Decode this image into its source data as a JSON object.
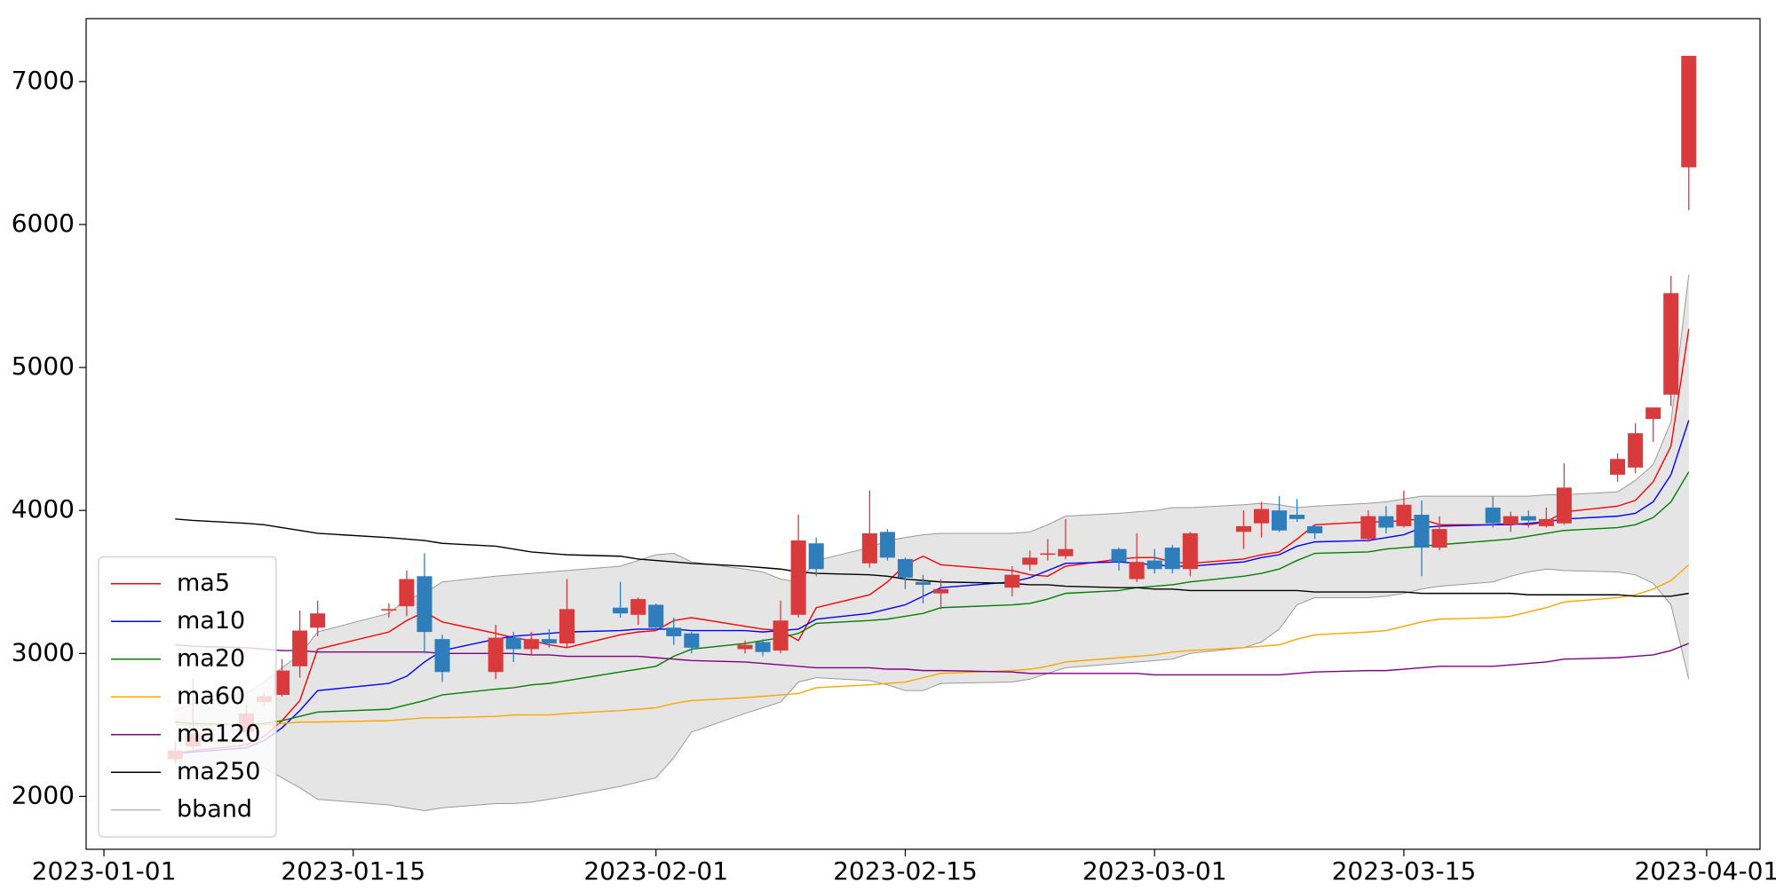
{
  "chart_data": {
    "type": "candlestick",
    "x": [
      "2023-01-05",
      "2023-01-06",
      "2023-01-09",
      "2023-01-10",
      "2023-01-11",
      "2023-01-12",
      "2023-01-13",
      "2023-01-17",
      "2023-01-18",
      "2023-01-19",
      "2023-01-20",
      "2023-01-23",
      "2023-01-24",
      "2023-01-25",
      "2023-01-26",
      "2023-01-27",
      "2023-01-30",
      "2023-01-31",
      "2023-02-01",
      "2023-02-02",
      "2023-02-03",
      "2023-02-06",
      "2023-02-07",
      "2023-02-08",
      "2023-02-09",
      "2023-02-10",
      "2023-02-13",
      "2023-02-14",
      "2023-02-15",
      "2023-02-16",
      "2023-02-17",
      "2023-02-21",
      "2023-02-22",
      "2023-02-23",
      "2023-02-24",
      "2023-02-27",
      "2023-02-28",
      "2023-03-01",
      "2023-03-02",
      "2023-03-03",
      "2023-03-06",
      "2023-03-07",
      "2023-03-08",
      "2023-03-09",
      "2023-03-10",
      "2023-03-13",
      "2023-03-14",
      "2023-03-15",
      "2023-03-16",
      "2023-03-17",
      "2023-03-20",
      "2023-03-21",
      "2023-03-22",
      "2023-03-23",
      "2023-03-24",
      "2023-03-27",
      "2023-03-28",
      "2023-03-29",
      "2023-03-30",
      "2023-03-31"
    ],
    "open": [
      2260,
      2350,
      2450,
      2660,
      2710,
      2910,
      3180,
      3300,
      3330,
      3540,
      3100,
      2870,
      3110,
      3030,
      3100,
      3070,
      3320,
      3270,
      3340,
      3180,
      3140,
      3030,
      3080,
      3020,
      3270,
      3770,
      3630,
      3850,
      3660,
      3500,
      3420,
      3460,
      3620,
      3690,
      3680,
      3730,
      3520,
      3650,
      3740,
      3590,
      3850,
      3910,
      4000,
      3970,
      3890,
      3800,
      3960,
      3890,
      3970,
      3740,
      4020,
      3900,
      3960,
      3890,
      3910,
      4250,
      4300,
      4640,
      4810,
      6400
    ],
    "high": [
      2380,
      2820,
      2640,
      2720,
      2960,
      3300,
      3370,
      3350,
      3580,
      3700,
      3130,
      3200,
      3150,
      3150,
      3170,
      3520,
      3500,
      3390,
      3350,
      3250,
      3150,
      3090,
      3100,
      3370,
      3970,
      3810,
      4140,
      3870,
      3670,
      3550,
      3520,
      3610,
      3720,
      3800,
      3940,
      3740,
      3840,
      3730,
      3760,
      3850,
      4000,
      4060,
      4100,
      4080,
      3900,
      4000,
      4030,
      4140,
      4070,
      3960,
      4100,
      3990,
      4000,
      4020,
      4330,
      4400,
      4610,
      4720,
      5640,
      7180
    ],
    "low": [
      2230,
      2330,
      2420,
      2640,
      2700,
      2830,
      3120,
      3250,
      3260,
      3000,
      2800,
      2820,
      2940,
      2990,
      3040,
      3040,
      3250,
      3200,
      3160,
      3060,
      3000,
      3000,
      2980,
      3000,
      3250,
      3540,
      3600,
      3650,
      3450,
      3350,
      3310,
      3400,
      3580,
      3650,
      3660,
      3580,
      3500,
      3560,
      3560,
      3540,
      3730,
      3810,
      3850,
      3920,
      3800,
      3780,
      3840,
      3880,
      3540,
      3720,
      3880,
      3850,
      3880,
      3880,
      3900,
      4200,
      4260,
      4480,
      4730,
      6100
    ],
    "close": [
      2320,
      2440,
      2580,
      2700,
      2880,
      3160,
      3280,
      3310,
      3520,
      3150,
      2870,
      3110,
      3030,
      3100,
      3070,
      3310,
      3280,
      3380,
      3180,
      3120,
      3040,
      3060,
      3010,
      3230,
      3790,
      3590,
      3840,
      3670,
      3530,
      3480,
      3450,
      3550,
      3670,
      3700,
      3730,
      3640,
      3640,
      3590,
      3590,
      3840,
      3890,
      4010,
      3860,
      3940,
      3840,
      3960,
      3880,
      4040,
      3740,
      3870,
      3910,
      3960,
      3930,
      3940,
      4160,
      4360,
      4540,
      4720,
      5520,
      7180
    ],
    "up_color": "#d93a3c",
    "down_color": "#2e7ebb",
    "series": [
      {
        "name": "ma5",
        "color": "#ff0000",
        "values": [
          2300,
          2320,
          2360,
          2420,
          2530,
          2670,
          3030,
          3150,
          3230,
          3290,
          3220,
          3140,
          3110,
          3090,
          3060,
          3040,
          3130,
          3150,
          3160,
          3230,
          3250,
          3190,
          3170,
          3160,
          3090,
          3320,
          3410,
          3500,
          3620,
          3680,
          3620,
          3580,
          3550,
          3540,
          3610,
          3660,
          3670,
          3670,
          3640,
          3630,
          3660,
          3690,
          3710,
          3800,
          3900,
          3920,
          3920,
          3930,
          3940,
          3900,
          3900,
          3910,
          3900,
          3920,
          3990,
          4030,
          4070,
          4200,
          4450,
          5270
        ]
      },
      {
        "name": "ma10",
        "color": "#0000ff",
        "values": [
          2300,
          2310,
          2340,
          2390,
          2480,
          2600,
          2740,
          2790,
          2840,
          2940,
          3020,
          3100,
          3120,
          3130,
          3140,
          3150,
          3160,
          3170,
          3170,
          3170,
          3160,
          3160,
          3150,
          3160,
          3170,
          3240,
          3280,
          3310,
          3340,
          3400,
          3460,
          3500,
          3530,
          3580,
          3630,
          3640,
          3630,
          3620,
          3610,
          3610,
          3640,
          3670,
          3690,
          3750,
          3780,
          3790,
          3810,
          3830,
          3880,
          3890,
          3900,
          3900,
          3910,
          3920,
          3940,
          3960,
          3980,
          4060,
          4250,
          4630
        ]
      },
      {
        "name": "ma20",
        "color": "#008000",
        "values": [
          2520,
          2510,
          2500,
          2510,
          2530,
          2560,
          2590,
          2610,
          2640,
          2670,
          2710,
          2750,
          2760,
          2780,
          2790,
          2810,
          2870,
          2890,
          2910,
          2980,
          3030,
          3070,
          3090,
          3110,
          3140,
          3210,
          3230,
          3240,
          3260,
          3280,
          3320,
          3340,
          3350,
          3380,
          3420,
          3440,
          3460,
          3470,
          3480,
          3500,
          3540,
          3560,
          3590,
          3650,
          3700,
          3710,
          3730,
          3740,
          3750,
          3760,
          3790,
          3800,
          3820,
          3840,
          3860,
          3880,
          3900,
          3950,
          4060,
          4270
        ]
      },
      {
        "name": "ma60",
        "color": "#ffa500",
        "values": [
          2500,
          2500,
          2500,
          2500,
          2510,
          2520,
          2520,
          2530,
          2540,
          2550,
          2550,
          2560,
          2570,
          2570,
          2570,
          2580,
          2600,
          2610,
          2620,
          2650,
          2670,
          2690,
          2700,
          2710,
          2720,
          2760,
          2780,
          2790,
          2800,
          2830,
          2860,
          2880,
          2890,
          2910,
          2940,
          2970,
          2980,
          2990,
          3010,
          3020,
          3040,
          3050,
          3060,
          3100,
          3130,
          3150,
          3160,
          3190,
          3220,
          3240,
          3250,
          3260,
          3290,
          3320,
          3360,
          3390,
          3410,
          3450,
          3510,
          3620
        ]
      },
      {
        "name": "ma120",
        "color": "#800080",
        "values": [
          3060,
          3050,
          3040,
          3030,
          3020,
          3020,
          3010,
          3010,
          3010,
          3010,
          3000,
          3000,
          3000,
          2990,
          2990,
          2980,
          2980,
          2980,
          2970,
          2960,
          2950,
          2940,
          2930,
          2920,
          2910,
          2900,
          2900,
          2890,
          2890,
          2880,
          2880,
          2870,
          2860,
          2860,
          2860,
          2860,
          2860,
          2850,
          2850,
          2850,
          2850,
          2850,
          2850,
          2860,
          2870,
          2880,
          2880,
          2890,
          2900,
          2910,
          2910,
          2920,
          2930,
          2940,
          2960,
          2970,
          2980,
          2990,
          3020,
          3070
        ]
      },
      {
        "name": "ma250",
        "color": "#000000",
        "values": [
          3940,
          3930,
          3910,
          3900,
          3880,
          3860,
          3840,
          3810,
          3800,
          3790,
          3770,
          3750,
          3730,
          3710,
          3700,
          3690,
          3680,
          3660,
          3650,
          3640,
          3630,
          3610,
          3600,
          3590,
          3570,
          3560,
          3550,
          3540,
          3520,
          3510,
          3500,
          3490,
          3480,
          3480,
          3470,
          3460,
          3460,
          3450,
          3450,
          3440,
          3440,
          3440,
          3440,
          3440,
          3430,
          3430,
          3430,
          3430,
          3420,
          3420,
          3420,
          3420,
          3410,
          3410,
          3410,
          3410,
          3400,
          3400,
          3400,
          3420
        ]
      }
    ],
    "bband": {
      "name": "bband",
      "color": "#999999",
      "fill": "#e5e5e5",
      "upper": [
        2600,
        2650,
        2720,
        2800,
        2900,
        2990,
        3150,
        3280,
        3380,
        3420,
        3500,
        3540,
        3550,
        3560,
        3570,
        3580,
        3610,
        3650,
        3690,
        3700,
        3640,
        3590,
        3570,
        3520,
        3500,
        3650,
        3740,
        3790,
        3810,
        3830,
        3840,
        3840,
        3850,
        3900,
        3960,
        3980,
        3990,
        4000,
        4020,
        4020,
        4040,
        4050,
        4040,
        4020,
        4030,
        4050,
        4060,
        4080,
        4100,
        4100,
        4100,
        4100,
        4100,
        4110,
        4110,
        4130,
        4210,
        4320,
        4620,
        5650
      ],
      "lower": [
        2200,
        2200,
        2210,
        2200,
        2130,
        2060,
        1980,
        1940,
        1920,
        1900,
        1920,
        1950,
        1950,
        1960,
        1980,
        2000,
        2070,
        2100,
        2130,
        2270,
        2450,
        2580,
        2620,
        2660,
        2800,
        2830,
        2810,
        2780,
        2740,
        2740,
        2790,
        2800,
        2820,
        2860,
        2900,
        2930,
        2940,
        2950,
        2960,
        3000,
        3040,
        3080,
        3170,
        3340,
        3390,
        3390,
        3400,
        3420,
        3450,
        3470,
        3500,
        3540,
        3570,
        3590,
        3580,
        3570,
        3550,
        3490,
        3340,
        2820
      ]
    },
    "xlim": [
      "2022-12-31",
      "2023-04-04"
    ],
    "xticks": [
      "2023-01-01",
      "2023-01-15",
      "2023-02-01",
      "2023-02-15",
      "2023-03-01",
      "2023-03-15",
      "2023-04-01"
    ],
    "ylim": [
      1630,
      7440
    ],
    "yticks": [
      2000,
      3000,
      4000,
      5000,
      6000,
      7000
    ],
    "legend": "lower left"
  }
}
